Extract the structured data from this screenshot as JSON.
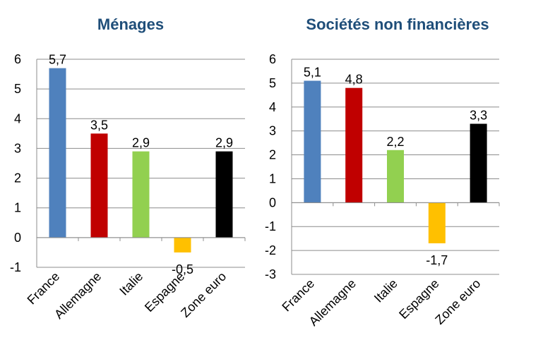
{
  "chart_data": [
    {
      "type": "bar",
      "title": "Ménages",
      "xlabel": "",
      "ylabel": "",
      "categories": [
        "France",
        "Allemagne",
        "Italie",
        "Espagne",
        "Zone euro"
      ],
      "values": [
        5.7,
        3.5,
        2.9,
        -0.5,
        2.9
      ],
      "data_labels": [
        "5,7",
        "3,5",
        "2,9",
        "-0,5",
        "2,9"
      ],
      "colors": [
        "#4f81bd",
        "#c00000",
        "#92d050",
        "#ffc000",
        "#000000"
      ],
      "ylim": [
        -1,
        6
      ],
      "yticks": [
        "-1",
        "0",
        "1",
        "2",
        "3",
        "4",
        "5",
        "6"
      ],
      "grid": true,
      "legend": "none"
    },
    {
      "type": "bar",
      "title": "Sociétés non financières",
      "xlabel": "",
      "ylabel": "",
      "categories": [
        "France",
        "Allemagne",
        "Italie",
        "Espagne",
        "Zone euro"
      ],
      "values": [
        5.1,
        4.8,
        2.2,
        -1.7,
        3.3
      ],
      "data_labels": [
        "5,1",
        "4,8",
        "2,2",
        "-1,7",
        "3,3"
      ],
      "colors": [
        "#4f81bd",
        "#c00000",
        "#92d050",
        "#ffc000",
        "#000000"
      ],
      "ylim": [
        -3,
        6
      ],
      "yticks": [
        "-3",
        "-2",
        "-1",
        "0",
        "1",
        "2",
        "3",
        "4",
        "5",
        "6"
      ],
      "grid": true,
      "legend": "none"
    }
  ]
}
